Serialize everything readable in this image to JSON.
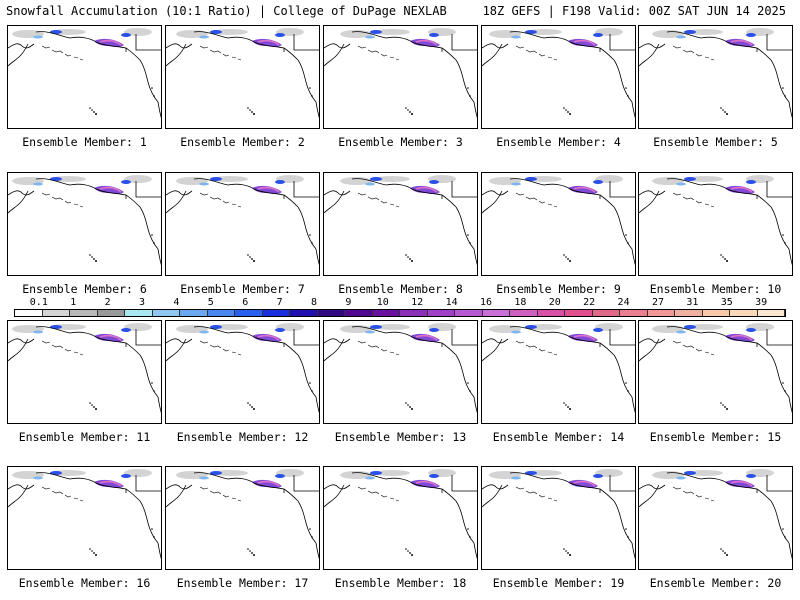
{
  "header": {
    "left_title": "Snowfall Accumulation (10:1 Ratio) | College of DuPage NEXLAB",
    "right_title": "18Z GEFS | F198 Valid: 00Z SAT JUN 14 2025"
  },
  "panels": [
    {
      "label": "Ensemble Member: 1"
    },
    {
      "label": "Ensemble Member: 2"
    },
    {
      "label": "Ensemble Member: 3"
    },
    {
      "label": "Ensemble Member: 4"
    },
    {
      "label": "Ensemble Member: 5"
    },
    {
      "label": "Ensemble Member: 6"
    },
    {
      "label": "Ensemble Member: 7"
    },
    {
      "label": "Ensemble Member: 8"
    },
    {
      "label": "Ensemble Member: 9"
    },
    {
      "label": "Ensemble Member: 10"
    },
    {
      "label": "Ensemble Member: 11"
    },
    {
      "label": "Ensemble Member: 12"
    },
    {
      "label": "Ensemble Member: 13"
    },
    {
      "label": "Ensemble Member: 14"
    },
    {
      "label": "Ensemble Member: 15"
    },
    {
      "label": "Ensemble Member: 16"
    },
    {
      "label": "Ensemble Member: 17"
    },
    {
      "label": "Ensemble Member: 18"
    },
    {
      "label": "Ensemble Member: 19"
    },
    {
      "label": "Ensemble Member: 20"
    }
  ],
  "color_scale": {
    "tick_labels": [
      "0.1",
      "1",
      "2",
      "3",
      "4",
      "5",
      "6",
      "7",
      "8",
      "9",
      "10",
      "12",
      "14",
      "16",
      "18",
      "20",
      "22",
      "24",
      "27",
      "31",
      "35",
      "39"
    ],
    "colors": [
      "#ffffff",
      "#d4d4d4",
      "#b8b8b8",
      "#999999",
      "#a8e8f0",
      "#8ec8f0",
      "#6aa8f0",
      "#4a88f0",
      "#2a60f0",
      "#1a30e0",
      "#2010b0",
      "#300880",
      "#500890",
      "#6a10a0",
      "#8a30b8",
      "#a040c8",
      "#b858d0",
      "#c870d8",
      "#d060c0",
      "#d850a8",
      "#e05090",
      "#e06888",
      "#e88090",
      "#f09898",
      "#f0b0a0",
      "#f8c8a8",
      "#fad8b8",
      "#fce8d0"
    ]
  }
}
